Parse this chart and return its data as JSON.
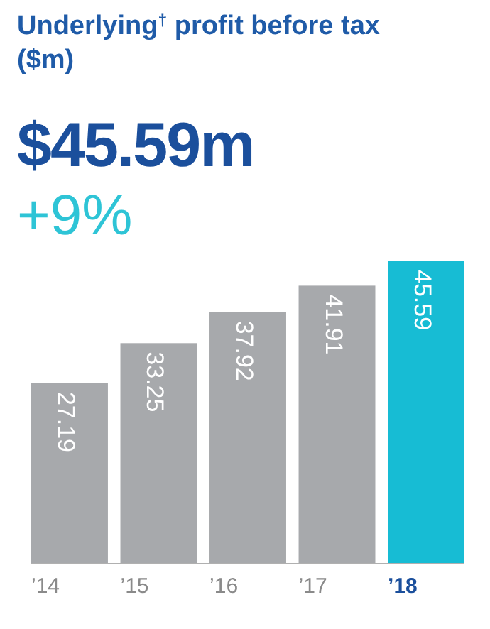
{
  "chart_data": {
    "type": "bar",
    "title": "Underlying$^{†}$ profit before tax ($m)",
    "subtitle": "$45.59m",
    "annotations": [
      "+9%"
    ],
    "categories": [
      "’14",
      "’15",
      "’16",
      "’17",
      "’18"
    ],
    "values": [
      27.19,
      33.25,
      37.92,
      41.91,
      45.59
    ],
    "colors": [
      "#a7a9ac",
      "#a7a9ac",
      "#a7a9ac",
      "#a7a9ac",
      "#17bcd4"
    ],
    "data_labels": true
  }
}
